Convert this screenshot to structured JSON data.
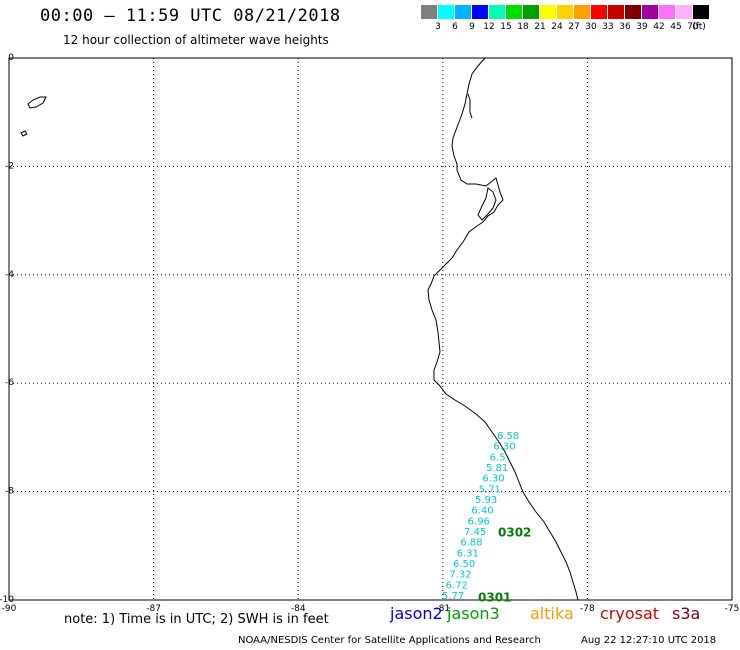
{
  "header": {
    "title": "00:00 – 11:59 UTC 08/21/2018",
    "subtitle": "12 hour collection of altimeter wave heights"
  },
  "colorbar": {
    "colors": [
      "#808080",
      "#00ffff",
      "#00b4ff",
      "#0000ff",
      "#00ffb4",
      "#00e000",
      "#00a000",
      "#ffff00",
      "#ffd000",
      "#ffa000",
      "#ff0000",
      "#c80000",
      "#800000",
      "#a000a0",
      "#ff70ff",
      "#ffb0ff",
      "#000000"
    ],
    "labels": [
      "3",
      "6",
      "9",
      "12",
      "15",
      "18",
      "21",
      "24",
      "27",
      "30",
      "33",
      "36",
      "39",
      "42",
      "45",
      "70",
      "(ft)"
    ]
  },
  "map": {
    "lat_range": [
      -10,
      0
    ],
    "lon_range": [
      -90,
      -75
    ],
    "lat_ticks": [
      "0",
      "-2",
      "-4",
      "-6",
      "-8",
      "-10"
    ],
    "lon_ticks": [
      "-90",
      "-87",
      "-84",
      "-81",
      "-78",
      "-75"
    ],
    "swh_color": "#00cccc",
    "pass_color": "#008000",
    "swh_labels": [
      "6.58",
      "6.30",
      "6.5",
      "5.81",
      "6.30",
      "5.71",
      "5.93",
      "6.40",
      "6.96",
      "7.45",
      "6.88",
      "6.31",
      "6.50",
      "7.32",
      "6.72",
      "5.77"
    ],
    "pass_labels": [
      {
        "text": "0302",
        "lat": -8.75
      },
      {
        "text": "0301",
        "lat": -9.95
      }
    ]
  },
  "footer": {
    "note": "note: 1) Time is in UTC; 2) SWH is in feet",
    "satellites": [
      {
        "name": "jason2",
        "color": "#0000e0"
      },
      {
        "name": "jason3",
        "color": "#00a000"
      },
      {
        "name": "altika",
        "color": "#ff9900"
      },
      {
        "name": "cryosat",
        "color": "#d00000"
      },
      {
        "name": "s3a",
        "color": "#800000"
      }
    ],
    "credit": "NOAA/NESDIS Center for Satellite Applications and Research",
    "timestamp": "Aug 22 12:27:10 UTC 2018"
  }
}
